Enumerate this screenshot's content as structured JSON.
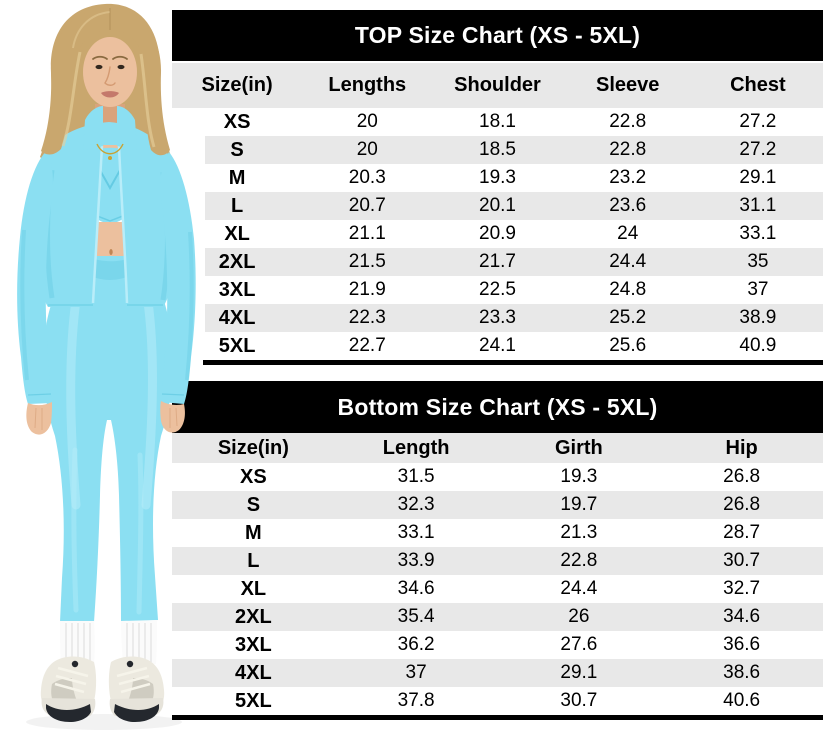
{
  "theme": {
    "page_bg": "#ffffff",
    "bar_bg": "#000000",
    "bar_text": "#ffffff",
    "stripe": "#e8e8e8",
    "cell_text": "#000000"
  },
  "figure": {
    "description": "Woman with shoulder-length blonde hair modeling a light-blue 3-piece activewear set: open cropped zip jacket with stand collar and thumb-hole sleeves, V-neck sports bra, high-waist leggings, white crew socks and cream chunky sneakers with dark soles",
    "colors": {
      "outfit": "#8bdff2",
      "outfit_highlight": "#b9edf9",
      "outfit_shadow": "#5bc6df",
      "skin": "#ecc09e",
      "skin_shadow": "#d9a37c",
      "hair": "#c9a76e",
      "hair_highlight": "#e7d09c",
      "sock": "#fbfbfb",
      "sneaker": "#ece9df",
      "sneaker_sole": "#24282e",
      "necklace_gold": "#c9a233"
    }
  },
  "chart_data": [
    {
      "type": "table",
      "title": "TOP Size Chart (XS - 5XL)",
      "columns": [
        "Size(in)",
        "Lengths",
        "Shoulder",
        "Sleeve",
        "Chest"
      ],
      "rows": [
        [
          "XS",
          "20",
          "18.1",
          "22.8",
          "27.2"
        ],
        [
          "S",
          "20",
          "18.5",
          "22.8",
          "27.2"
        ],
        [
          "M",
          "20.3",
          "19.3",
          "23.2",
          "29.1"
        ],
        [
          "L",
          "20.7",
          "20.1",
          "23.6",
          "31.1"
        ],
        [
          "XL",
          "21.1",
          "20.9",
          "24",
          "33.1"
        ],
        [
          "2XL",
          "21.5",
          "21.7",
          "24.4",
          "35"
        ],
        [
          "3XL",
          "21.9",
          "22.5",
          "24.8",
          "37"
        ],
        [
          "4XL",
          "22.3",
          "23.3",
          "25.2",
          "38.9"
        ],
        [
          "5XL",
          "22.7",
          "24.1",
          "25.6",
          "40.9"
        ]
      ]
    },
    {
      "type": "table",
      "title": "Bottom Size Chart (XS - 5XL)",
      "columns": [
        "Size(in)",
        "Length",
        "Girth",
        "Hip"
      ],
      "rows": [
        [
          "XS",
          "31.5",
          "19.3",
          "26.8"
        ],
        [
          "S",
          "32.3",
          "19.7",
          "26.8"
        ],
        [
          "M",
          "33.1",
          "21.3",
          "28.7"
        ],
        [
          "L",
          "33.9",
          "22.8",
          "30.7"
        ],
        [
          "XL",
          "34.6",
          "24.4",
          "32.7"
        ],
        [
          "2XL",
          "35.4",
          "26",
          "34.6"
        ],
        [
          "3XL",
          "36.2",
          "27.6",
          "36.6"
        ],
        [
          "4XL",
          "37",
          "29.1",
          "38.6"
        ],
        [
          "5XL",
          "37.8",
          "30.7",
          "40.6"
        ]
      ]
    }
  ]
}
